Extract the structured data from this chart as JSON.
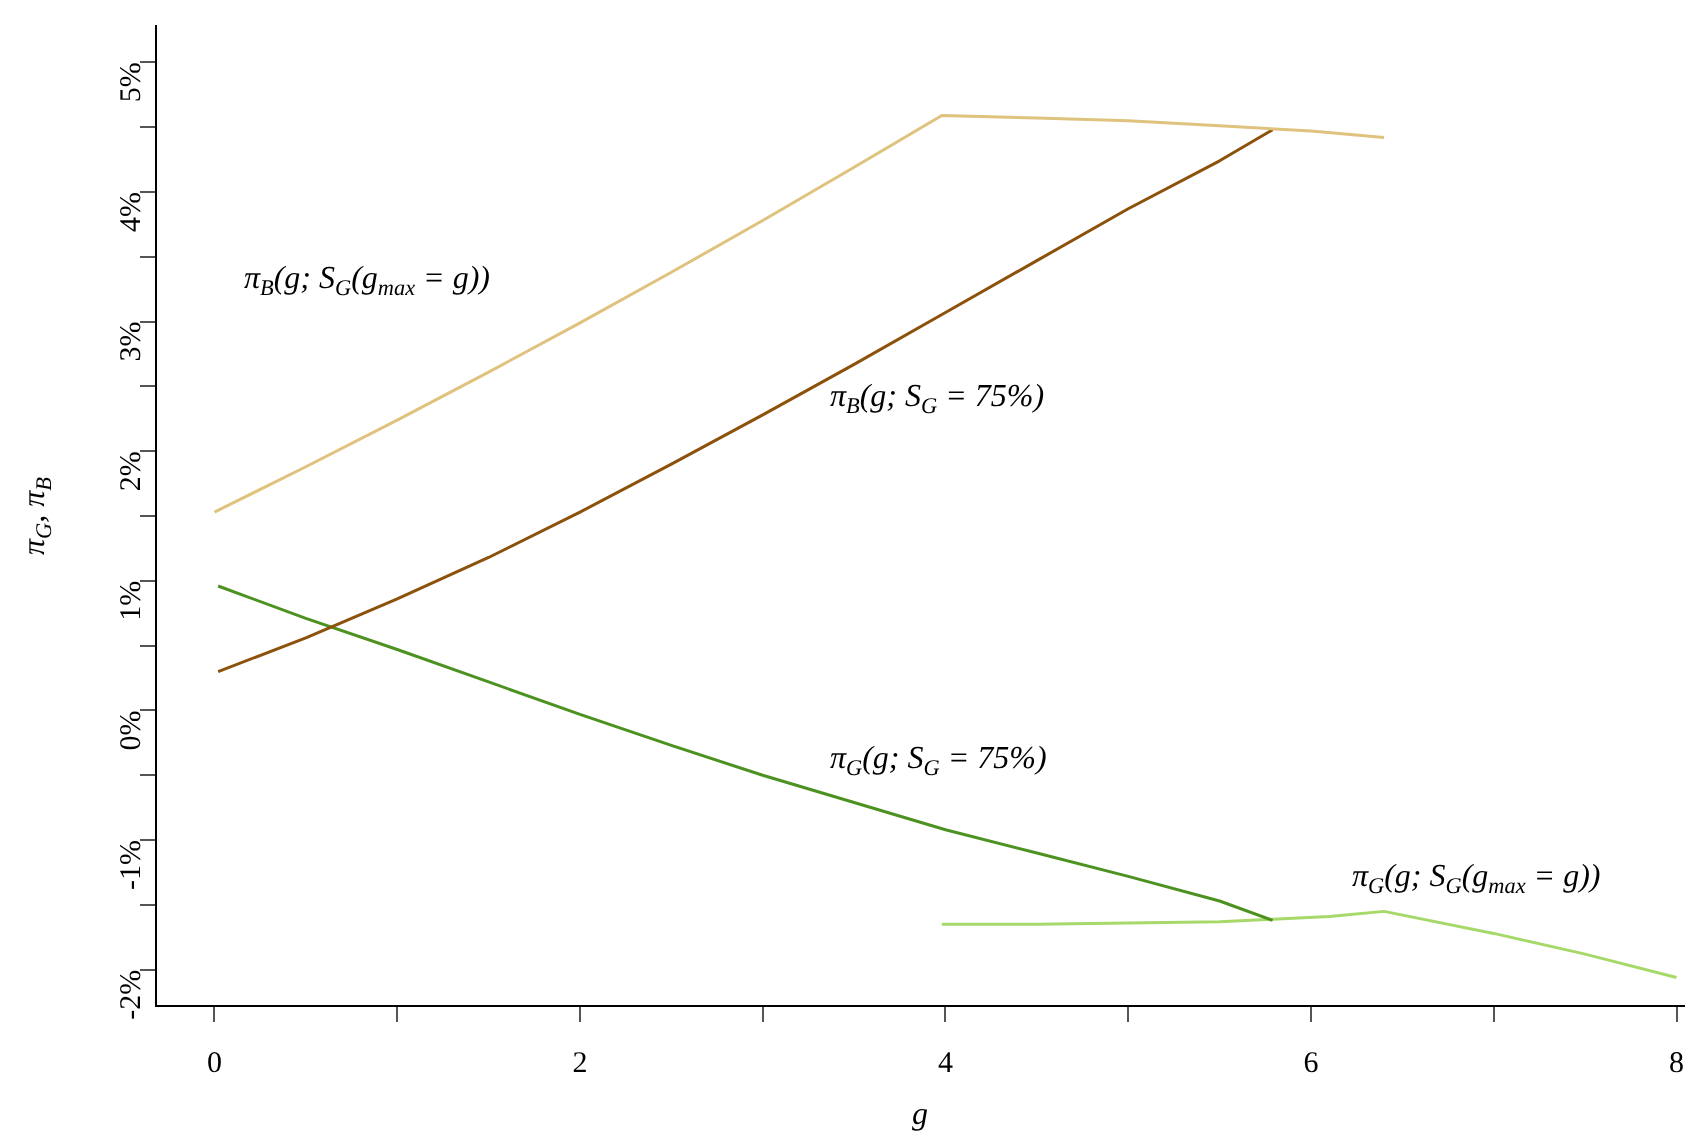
{
  "chart_data": {
    "type": "line",
    "xlabel": "g",
    "ylabel": "π$_{G}$, π$_{B}$",
    "xlim": [
      -0.32,
      8.04
    ],
    "ylim": [
      -2.28,
      5.28
    ],
    "xticks": [
      0,
      {
        "value": 1,
        "label": null
      },
      2,
      {
        "value": 3,
        "label": null
      },
      4,
      {
        "value": 5,
        "label": null
      },
      6,
      {
        "value": 7,
        "label": null
      },
      8
    ],
    "yticks": [
      {
        "value": -2,
        "label": "-2%"
      },
      {
        "value": -1.5,
        "label": null
      },
      {
        "value": -1,
        "label": "-1%"
      },
      {
        "value": -0.5,
        "label": null
      },
      {
        "value": 0,
        "label": "0%"
      },
      {
        "value": 0.5,
        "label": null
      },
      {
        "value": 1,
        "label": "1%"
      },
      {
        "value": 1.5,
        "label": null
      },
      {
        "value": 2,
        "label": "2%"
      },
      {
        "value": 2.5,
        "label": null
      },
      {
        "value": 3,
        "label": "3%"
      },
      {
        "value": 3.5,
        "label": null
      },
      {
        "value": 4,
        "label": "4%"
      },
      {
        "value": 4.5,
        "label": null
      },
      {
        "value": 5,
        "label": "5%"
      }
    ],
    "grid": false,
    "legend": false,
    "marker": "none",
    "line_style": "solid",
    "series": [
      {
        "name": "π$_{B}$(g; S$_{G}$(g$_{max}$ = g))",
        "color": "#dfc27d",
        "x": [
          0,
          0.5,
          1,
          1.5,
          2,
          2.5,
          3,
          3.5,
          3.98,
          4.5,
          5,
          5.5,
          6,
          6.4
        ],
        "values": [
          1.53,
          1.88,
          2.24,
          2.61,
          2.99,
          3.38,
          3.78,
          4.19,
          4.59,
          4.57,
          4.55,
          4.51,
          4.47,
          4.42
        ]
      },
      {
        "name": "π$_{B}$(g; S$_{G}$ = 75%)",
        "color": "#8c510a",
        "x": [
          0.02,
          0.5,
          1,
          1.5,
          2,
          2.5,
          3,
          3.5,
          4,
          4.5,
          5,
          5.5,
          5.79
        ],
        "values": [
          0.3,
          0.56,
          0.86,
          1.18,
          1.53,
          1.9,
          2.28,
          2.67,
          3.07,
          3.47,
          3.87,
          4.24,
          4.48
        ]
      },
      {
        "name": "π$_{G}$(g; S$_{G}$ = 75%)",
        "color": "#4d9221",
        "x": [
          0.02,
          0.5,
          1,
          1.5,
          2,
          2.5,
          3,
          3.5,
          4,
          4.5,
          5,
          5.5,
          5.79
        ],
        "values": [
          0.96,
          0.71,
          0.47,
          0.22,
          -0.03,
          -0.27,
          -0.5,
          -0.71,
          -0.92,
          -1.1,
          -1.28,
          -1.47,
          -1.62
        ]
      },
      {
        "name": "π$_{G}$(g; S$_{G}$(g$_{max}$ = g))",
        "color": "#a6d96a",
        "x": [
          3.98,
          4.5,
          5,
          5.5,
          5.79,
          6.1,
          6.4,
          7,
          7.5,
          8
        ],
        "values": [
          -1.65,
          -1.65,
          -1.64,
          -1.63,
          -1.61,
          -1.59,
          -1.55,
          -1.72,
          -1.88,
          -2.06
        ]
      }
    ]
  }
}
